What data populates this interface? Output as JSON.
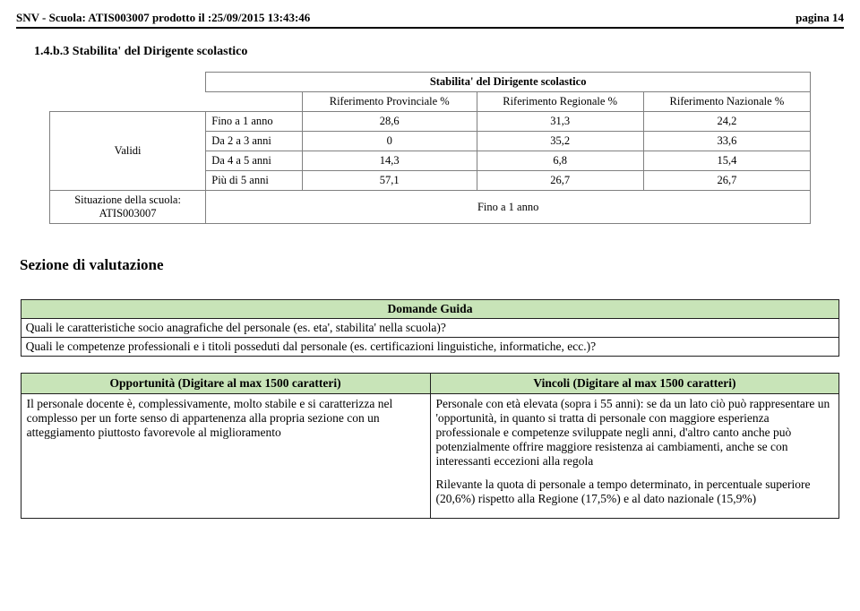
{
  "header": {
    "left": "SNV - Scuola: ATIS003007 prodotto il :25/09/2015 13:43:46",
    "right": "pagina 14"
  },
  "section_number": "1.4.b.3 Stabilita' del Dirigente scolastico",
  "table": {
    "title": "Stabilita' del Dirigente scolastico",
    "col1": "Riferimento Provinciale %",
    "col2": "Riferimento Regionale %",
    "col3": "Riferimento Nazionale %",
    "validi_label": "Validi",
    "rows": [
      {
        "label": "Fino a 1 anno",
        "c1": "28,6",
        "c2": "31,3",
        "c3": "24,2"
      },
      {
        "label": "Da 2 a 3 anni",
        "c1": "0",
        "c2": "35,2",
        "c3": "33,6"
      },
      {
        "label": "Da 4 a 5 anni",
        "c1": "14,3",
        "c2": "6,8",
        "c3": "15,4"
      },
      {
        "label": "Più di 5 anni",
        "c1": "57,1",
        "c2": "26,7",
        "c3": "26,7"
      }
    ],
    "situazione_label": "Situazione della scuola:\nATIS003007",
    "situazione_value": "Fino a 1 anno"
  },
  "sezione_title": "Sezione di valutazione",
  "guide": {
    "header": "Domande Guida",
    "q1": "Quali le caratteristiche socio anagrafiche del personale (es. eta', stabilita' nella scuola)?",
    "q2": "Quali le competenze professionali e i titoli posseduti dal personale (es. certificazioni linguistiche, informatiche, ecc.)?"
  },
  "opp_vin": {
    "left_header": "Opportunità (Digitare al max 1500 caratteri)",
    "right_header": "Vincoli (Digitare al max 1500 caratteri)",
    "left_body": "Il personale docente è, complessivamente, molto stabile  e si caratterizza nel complesso per un forte senso di appartenenza alla propria sezione con un atteggiamento piuttosto favorevole al miglioramento",
    "right_body_p1": "Personale con età elevata (sopra i 55 anni): se da un lato ciò può rappresentare un 'opportunità, in quanto si tratta di personale con maggiore esperienza professionale  e competenze sviluppate negli anni, d'altro canto anche può potenzialmente offrire maggiore resistenza ai cambiamenti, anche se con interessanti eccezioni alla regola",
    "right_body_p2": "Rilevante la quota di personale a tempo determinato, in percentuale superiore (20,6%) rispetto alla Regione (17,5%) e al dato nazionale (15,9%)"
  }
}
